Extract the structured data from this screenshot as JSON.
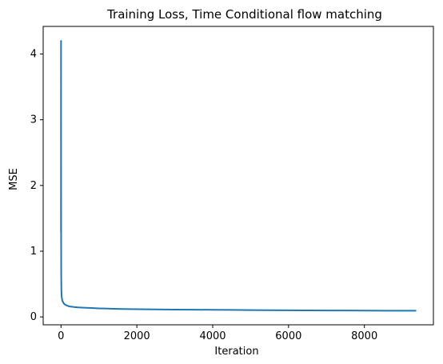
{
  "chart_data": {
    "type": "line",
    "title": "Training Loss, Time Conditional flow matching",
    "xlabel": "Iteration",
    "ylabel": "MSE",
    "xlim": [
      -470,
      9820
    ],
    "ylim": [
      -0.12,
      4.42
    ],
    "xticks": [
      0,
      2000,
      4000,
      6000,
      8000
    ],
    "yticks": [
      0,
      1,
      2,
      3,
      4
    ],
    "grid": false,
    "series": [
      {
        "color": "#1f77b4",
        "x": [
          0,
          1,
          2,
          3,
          4,
          5,
          6,
          8,
          10,
          12,
          15,
          20,
          25,
          30,
          40,
          50,
          60,
          80,
          100,
          130,
          170,
          220,
          280,
          350,
          450,
          600,
          800,
          1000,
          1300,
          1600,
          2000,
          2500,
          3000,
          3500,
          4000,
          4500,
          5000,
          5500,
          6000,
          6500,
          7000,
          7500,
          8000,
          8500,
          9000,
          9350
        ],
        "y": [
          1.3,
          4.2,
          2.6,
          1.6,
          1.1,
          0.8,
          0.62,
          0.5,
          0.42,
          0.37,
          0.33,
          0.3,
          0.28,
          0.26,
          0.24,
          0.23,
          0.22,
          0.2,
          0.19,
          0.18,
          0.17,
          0.16,
          0.155,
          0.15,
          0.145,
          0.14,
          0.135,
          0.13,
          0.125,
          0.12,
          0.118,
          0.115,
          0.112,
          0.11,
          0.108,
          0.106,
          0.104,
          0.102,
          0.1,
          0.099,
          0.098,
          0.097,
          0.096,
          0.095,
          0.095,
          0.094
        ]
      }
    ]
  }
}
